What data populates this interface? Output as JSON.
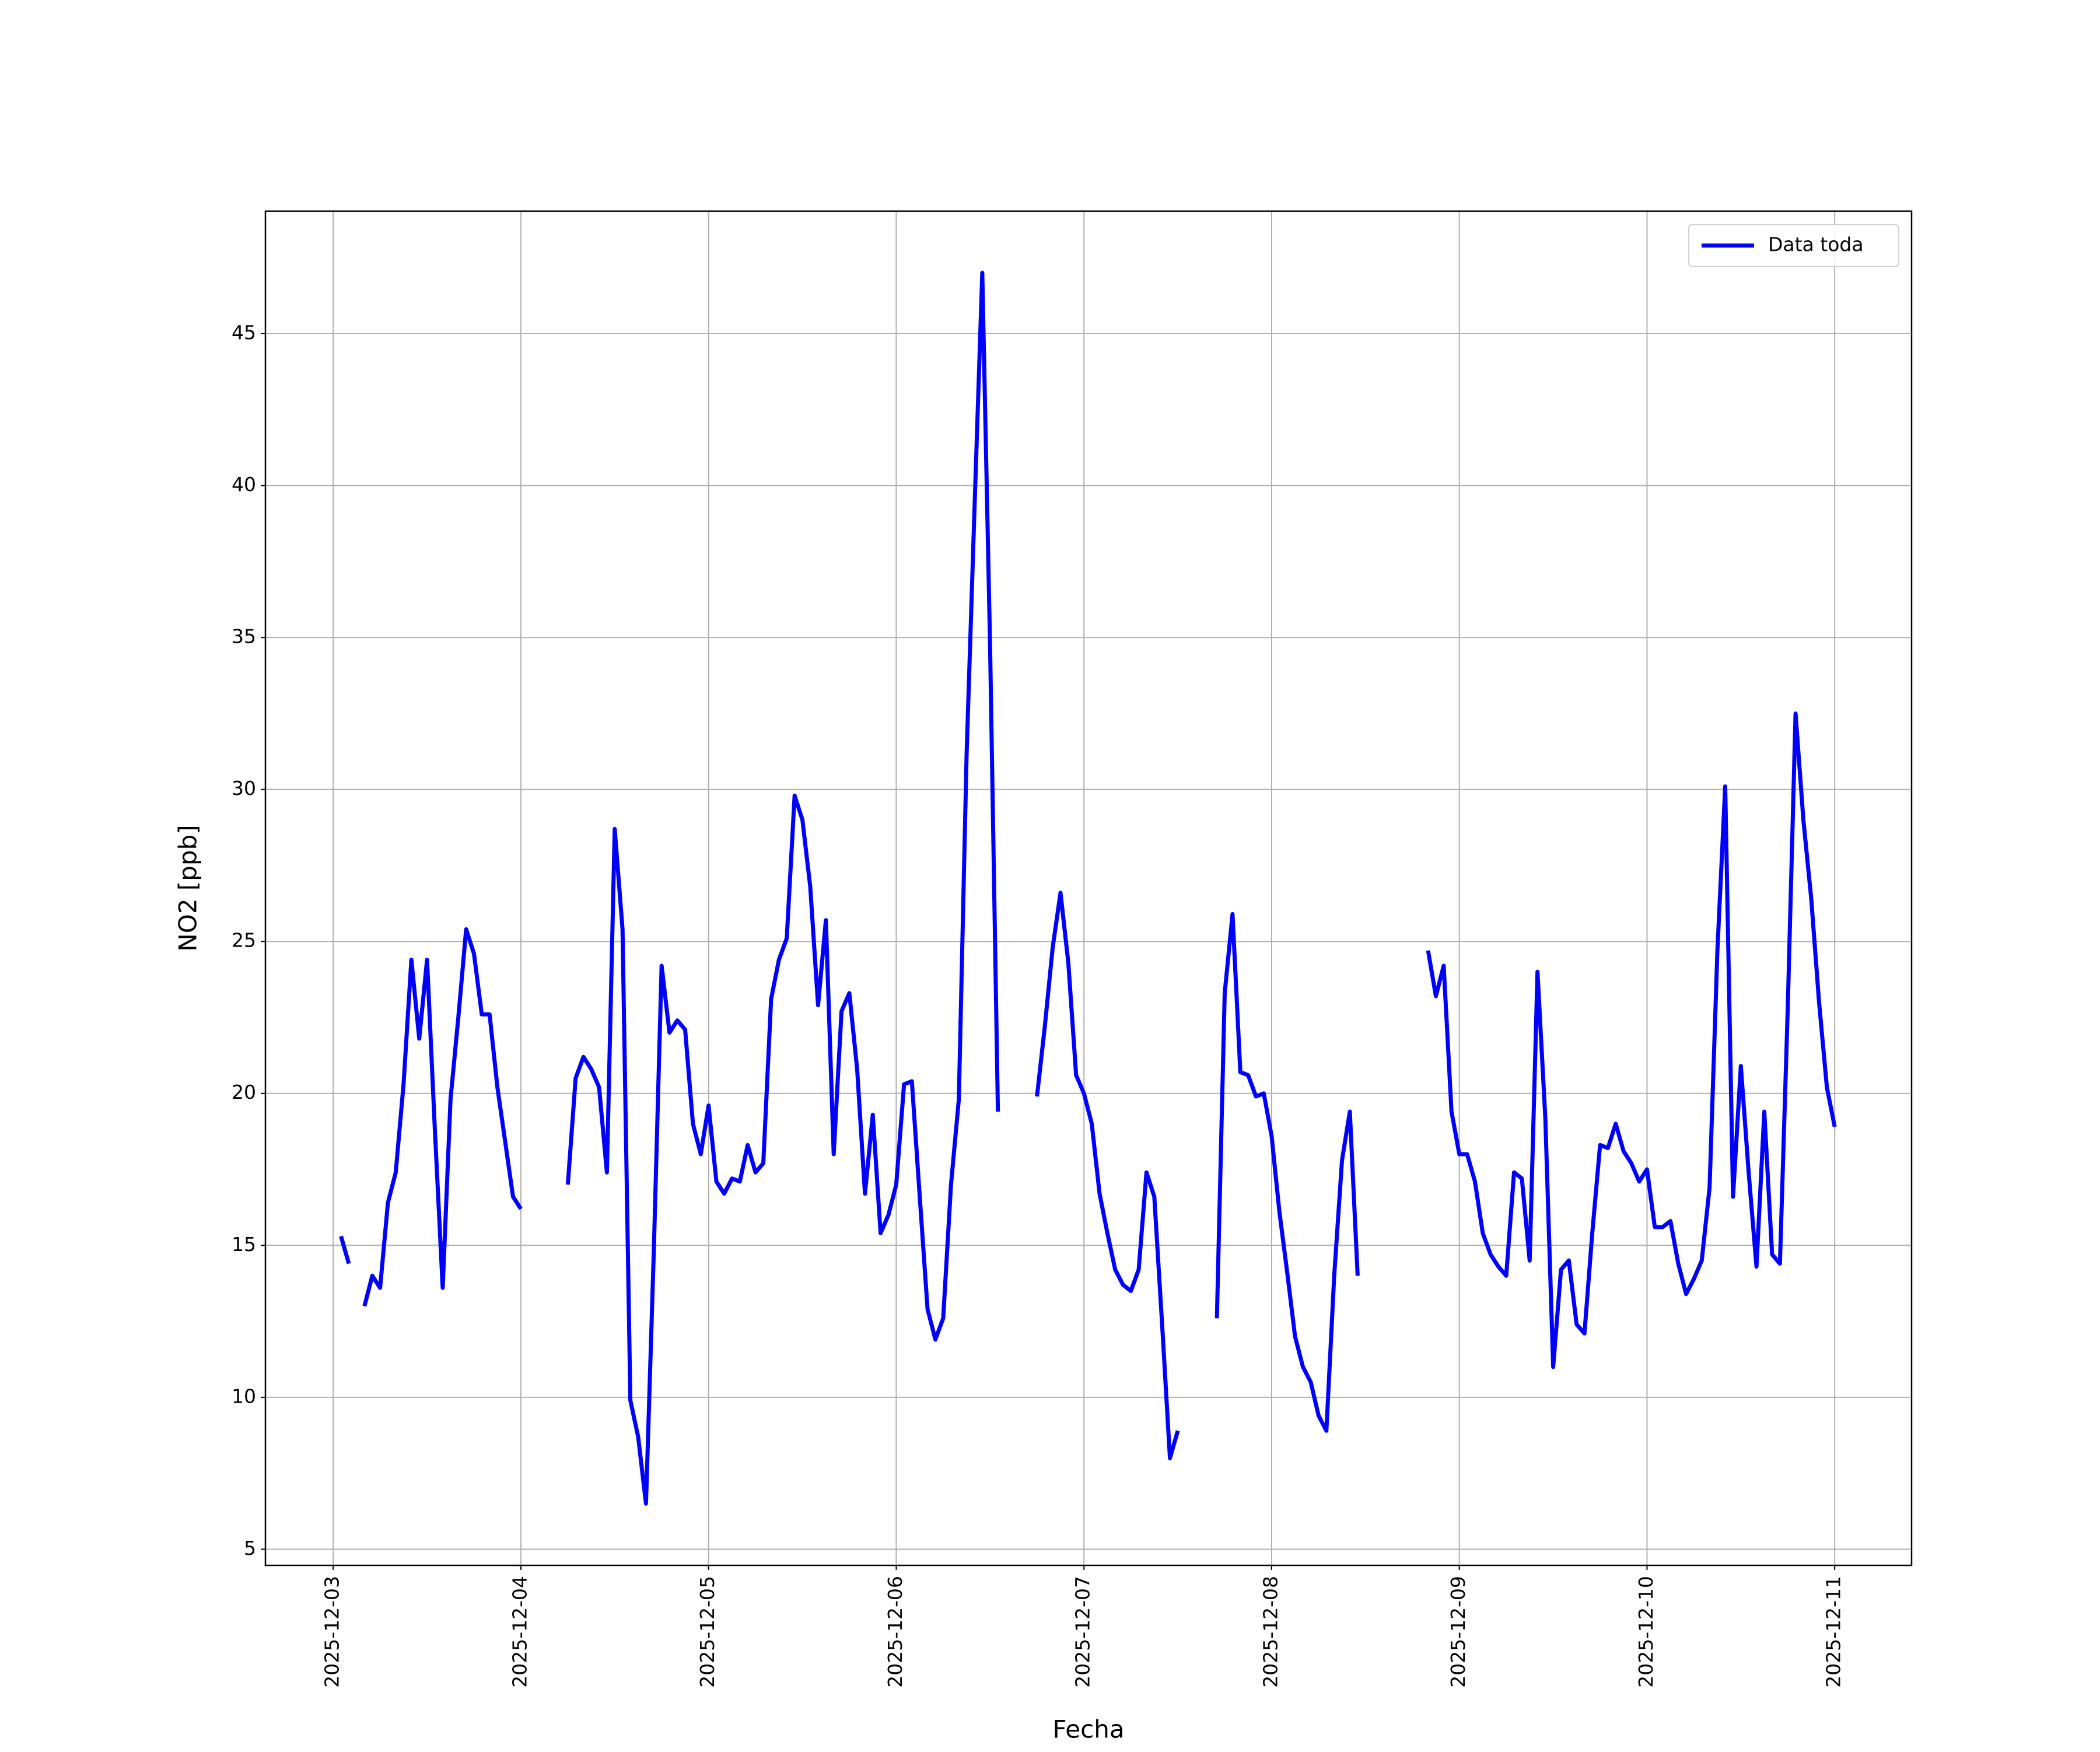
{
  "chart_data": {
    "type": "line",
    "xlabel": "Fecha",
    "ylabel": "NO2 [ppb]",
    "x": [
      "2025-12-03 01:00",
      "2025-12-03 02:00",
      "2025-12-03 03:00",
      "2025-12-03 04:00",
      "2025-12-03 05:00",
      "2025-12-03 06:00",
      "2025-12-03 07:00",
      "2025-12-03 08:00",
      "2025-12-03 09:00",
      "2025-12-03 10:00",
      "2025-12-03 11:00",
      "2025-12-03 12:00",
      "2025-12-03 13:00",
      "2025-12-03 14:00",
      "2025-12-03 15:00",
      "2025-12-03 16:00",
      "2025-12-03 17:00",
      "2025-12-03 18:00",
      "2025-12-03 19:00",
      "2025-12-03 20:00",
      "2025-12-03 21:00",
      "2025-12-03 22:00",
      "2025-12-03 23:00",
      "2025-12-04 00:00",
      "2025-12-04 01:00",
      "2025-12-04 02:00",
      "2025-12-04 03:00",
      "2025-12-04 04:00",
      "2025-12-04 05:00",
      "2025-12-04 06:00",
      "2025-12-04 07:00",
      "2025-12-04 08:00",
      "2025-12-04 09:00",
      "2025-12-04 10:00",
      "2025-12-04 11:00",
      "2025-12-04 12:00",
      "2025-12-04 13:00",
      "2025-12-04 14:00",
      "2025-12-04 15:00",
      "2025-12-04 16:00",
      "2025-12-04 17:00",
      "2025-12-04 18:00",
      "2025-12-04 19:00",
      "2025-12-04 20:00",
      "2025-12-04 21:00",
      "2025-12-04 22:00",
      "2025-12-04 23:00",
      "2025-12-05 00:00",
      "2025-12-05 01:00",
      "2025-12-05 02:00",
      "2025-12-05 03:00",
      "2025-12-05 04:00",
      "2025-12-05 05:00",
      "2025-12-05 06:00",
      "2025-12-05 07:00",
      "2025-12-05 08:00",
      "2025-12-05 09:00",
      "2025-12-05 10:00",
      "2025-12-05 11:00",
      "2025-12-05 12:00",
      "2025-12-05 13:00",
      "2025-12-05 14:00",
      "2025-12-05 15:00",
      "2025-12-05 16:00",
      "2025-12-05 17:00",
      "2025-12-05 18:00",
      "2025-12-05 19:00",
      "2025-12-05 20:00",
      "2025-12-05 21:00",
      "2025-12-05 22:00",
      "2025-12-05 23:00",
      "2025-12-06 00:00",
      "2025-12-06 01:00",
      "2025-12-06 02:00",
      "2025-12-06 03:00",
      "2025-12-06 04:00",
      "2025-12-06 05:00",
      "2025-12-06 06:00",
      "2025-12-06 07:00",
      "2025-12-06 08:00",
      "2025-12-06 09:00",
      "2025-12-06 10:00",
      "2025-12-06 11:00",
      "2025-12-06 12:00",
      "2025-12-06 13:00",
      "2025-12-06 14:00",
      "2025-12-06 15:00",
      "2025-12-06 16:00",
      "2025-12-06 17:00",
      "2025-12-06 18:00",
      "2025-12-06 19:00",
      "2025-12-06 20:00",
      "2025-12-06 21:00",
      "2025-12-06 22:00",
      "2025-12-06 23:00",
      "2025-12-07 00:00",
      "2025-12-07 01:00",
      "2025-12-07 02:00",
      "2025-12-07 03:00",
      "2025-12-07 04:00",
      "2025-12-07 05:00",
      "2025-12-07 06:00",
      "2025-12-07 07:00",
      "2025-12-07 08:00",
      "2025-12-07 09:00",
      "2025-12-07 10:00",
      "2025-12-07 11:00",
      "2025-12-07 12:00",
      "2025-12-07 13:00",
      "2025-12-07 14:00",
      "2025-12-07 15:00",
      "2025-12-07 16:00",
      "2025-12-07 17:00",
      "2025-12-07 18:00",
      "2025-12-07 19:00",
      "2025-12-07 20:00",
      "2025-12-07 21:00",
      "2025-12-07 22:00",
      "2025-12-07 23:00",
      "2025-12-08 00:00",
      "2025-12-08 01:00",
      "2025-12-08 02:00",
      "2025-12-08 03:00",
      "2025-12-08 04:00",
      "2025-12-08 05:00",
      "2025-12-08 06:00",
      "2025-12-08 07:00",
      "2025-12-08 08:00",
      "2025-12-08 09:00",
      "2025-12-08 10:00",
      "2025-12-08 11:00",
      "2025-12-08 12:00",
      "2025-12-08 13:00",
      "2025-12-08 14:00",
      "2025-12-08 15:00",
      "2025-12-08 16:00",
      "2025-12-08 17:00",
      "2025-12-08 18:00",
      "2025-12-08 19:00",
      "2025-12-08 20:00",
      "2025-12-08 21:00",
      "2025-12-08 22:00",
      "2025-12-08 23:00",
      "2025-12-09 00:00",
      "2025-12-09 01:00",
      "2025-12-09 02:00",
      "2025-12-09 03:00",
      "2025-12-09 04:00",
      "2025-12-09 05:00",
      "2025-12-09 06:00",
      "2025-12-09 07:00",
      "2025-12-09 08:00",
      "2025-12-09 09:00",
      "2025-12-09 10:00",
      "2025-12-09 11:00",
      "2025-12-09 12:00",
      "2025-12-09 13:00",
      "2025-12-09 14:00",
      "2025-12-09 15:00",
      "2025-12-09 16:00",
      "2025-12-09 17:00",
      "2025-12-09 18:00",
      "2025-12-09 19:00",
      "2025-12-09 20:00",
      "2025-12-09 21:00",
      "2025-12-09 22:00",
      "2025-12-09 23:00",
      "2025-12-10 00:00",
      "2025-12-10 01:00",
      "2025-12-10 02:00",
      "2025-12-10 03:00",
      "2025-12-10 04:00",
      "2025-12-10 05:00",
      "2025-12-10 06:00",
      "2025-12-10 07:00",
      "2025-12-10 08:00",
      "2025-12-10 09:00",
      "2025-12-10 10:00",
      "2025-12-10 11:00",
      "2025-12-10 12:00",
      "2025-12-10 13:00",
      "2025-12-10 14:00",
      "2025-12-10 15:00",
      "2025-12-10 16:00",
      "2025-12-10 17:00",
      "2025-12-10 18:00",
      "2025-12-10 19:00",
      "2025-12-10 20:00",
      "2025-12-10 21:00",
      "2025-12-10 22:00",
      "2025-12-10 23:00",
      "2025-12-11 00:00"
    ],
    "series": [
      {
        "name": "Data toda",
        "color": "#0000ff",
        "values": [
          15.3,
          14.4,
          null,
          13.0,
          14.0,
          13.6,
          16.4,
          17.4,
          20.3,
          24.4,
          21.8,
          24.4,
          18.8,
          13.6,
          19.8,
          22.5,
          25.4,
          24.6,
          22.6,
          22.6,
          20.2,
          18.4,
          16.6,
          16.2,
          null,
          null,
          null,
          null,
          null,
          17.0,
          20.5,
          21.2,
          20.8,
          20.2,
          17.4,
          28.7,
          25.4,
          9.9,
          8.7,
          6.5,
          14.8,
          24.2,
          22.0,
          22.4,
          22.1,
          19.0,
          18.0,
          19.6,
          17.1,
          16.7,
          17.2,
          17.1,
          18.3,
          17.4,
          17.7,
          23.1,
          24.4,
          25.1,
          29.8,
          29.0,
          26.8,
          22.9,
          25.7,
          18.0,
          22.7,
          23.3,
          20.8,
          16.7,
          19.3,
          15.4,
          16.0,
          17.0,
          20.3,
          20.4,
          16.6,
          12.9,
          11.9,
          12.6,
          17.0,
          19.8,
          31.2,
          39.2,
          47.0,
          34.7,
          19.4,
          null,
          null,
          null,
          null,
          19.9,
          22.2,
          24.8,
          26.6,
          24.3,
          20.6,
          20.0,
          19.0,
          16.7,
          15.4,
          14.2,
          13.7,
          13.5,
          14.2,
          17.4,
          16.6,
          12.4,
          8.0,
          8.9,
          null,
          null,
          null,
          null,
          12.6,
          23.3,
          25.9,
          20.7,
          20.6,
          19.9,
          20.0,
          18.6,
          16.1,
          14.1,
          12.0,
          11.0,
          10.5,
          9.4,
          8.9,
          14.0,
          17.8,
          19.4,
          14.0,
          null,
          null,
          null,
          null,
          null,
          null,
          null,
          null,
          24.7,
          23.2,
          24.2,
          19.4,
          18.0,
          18.0,
          17.1,
          15.4,
          14.7,
          14.3,
          14.0,
          17.4,
          17.2,
          14.5,
          24.0,
          19.2,
          11.0,
          14.2,
          14.5,
          12.4,
          12.1,
          15.4,
          18.3,
          18.2,
          19.0,
          18.1,
          17.7,
          17.1,
          17.5,
          15.6,
          15.6,
          15.8,
          14.4,
          13.4,
          13.9,
          14.5,
          16.9,
          24.7,
          30.1,
          16.6,
          20.9,
          17.4,
          14.3,
          19.4,
          14.7,
          14.4,
          22.8,
          32.5,
          29.0,
          26.4,
          23.0,
          20.2,
          18.9
        ]
      }
    ],
    "xlim": [
      "2025-12-02 15:20",
      "2025-12-11 09:50"
    ],
    "xticks": [
      "2025-12-03",
      "2025-12-04",
      "2025-12-05",
      "2025-12-06",
      "2025-12-07",
      "2025-12-08",
      "2025-12-09",
      "2025-12-10",
      "2025-12-11"
    ],
    "ylim": [
      4.47,
      49.03
    ],
    "yticks": [
      5,
      10,
      15,
      20,
      25,
      30,
      35,
      40,
      45
    ],
    "grid": true,
    "legend": "upper right"
  }
}
